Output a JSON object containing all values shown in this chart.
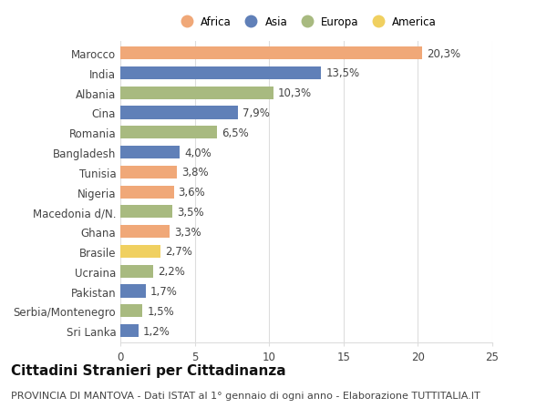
{
  "categories": [
    "Marocco",
    "India",
    "Albania",
    "Cina",
    "Romania",
    "Bangladesh",
    "Tunisia",
    "Nigeria",
    "Macedonia d/N.",
    "Ghana",
    "Brasile",
    "Ucraina",
    "Pakistan",
    "Serbia/Montenegro",
    "Sri Lanka"
  ],
  "values": [
    20.3,
    13.5,
    10.3,
    7.9,
    6.5,
    4.0,
    3.8,
    3.6,
    3.5,
    3.3,
    2.7,
    2.2,
    1.7,
    1.5,
    1.2
  ],
  "continents": [
    "Africa",
    "Asia",
    "Europa",
    "Asia",
    "Europa",
    "Asia",
    "Africa",
    "Africa",
    "Europa",
    "Africa",
    "America",
    "Europa",
    "Asia",
    "Europa",
    "Asia"
  ],
  "colors": {
    "Africa": "#F0A878",
    "Asia": "#6080B8",
    "Europa": "#A8BA80",
    "America": "#F0D060"
  },
  "legend_order": [
    "Africa",
    "Asia",
    "Europa",
    "America"
  ],
  "title": "Cittadini Stranieri per Cittadinanza",
  "subtitle": "PROVINCIA DI MANTOVA - Dati ISTAT al 1° gennaio di ogni anno - Elaborazione TUTTITALIA.IT",
  "xlim": [
    0,
    25
  ],
  "xticks": [
    0,
    5,
    10,
    15,
    20,
    25
  ],
  "background_color": "#ffffff",
  "grid_color": "#dddddd",
  "bar_height": 0.65,
  "label_fontsize": 8.5,
  "tick_fontsize": 8.5,
  "title_fontsize": 11,
  "subtitle_fontsize": 8
}
